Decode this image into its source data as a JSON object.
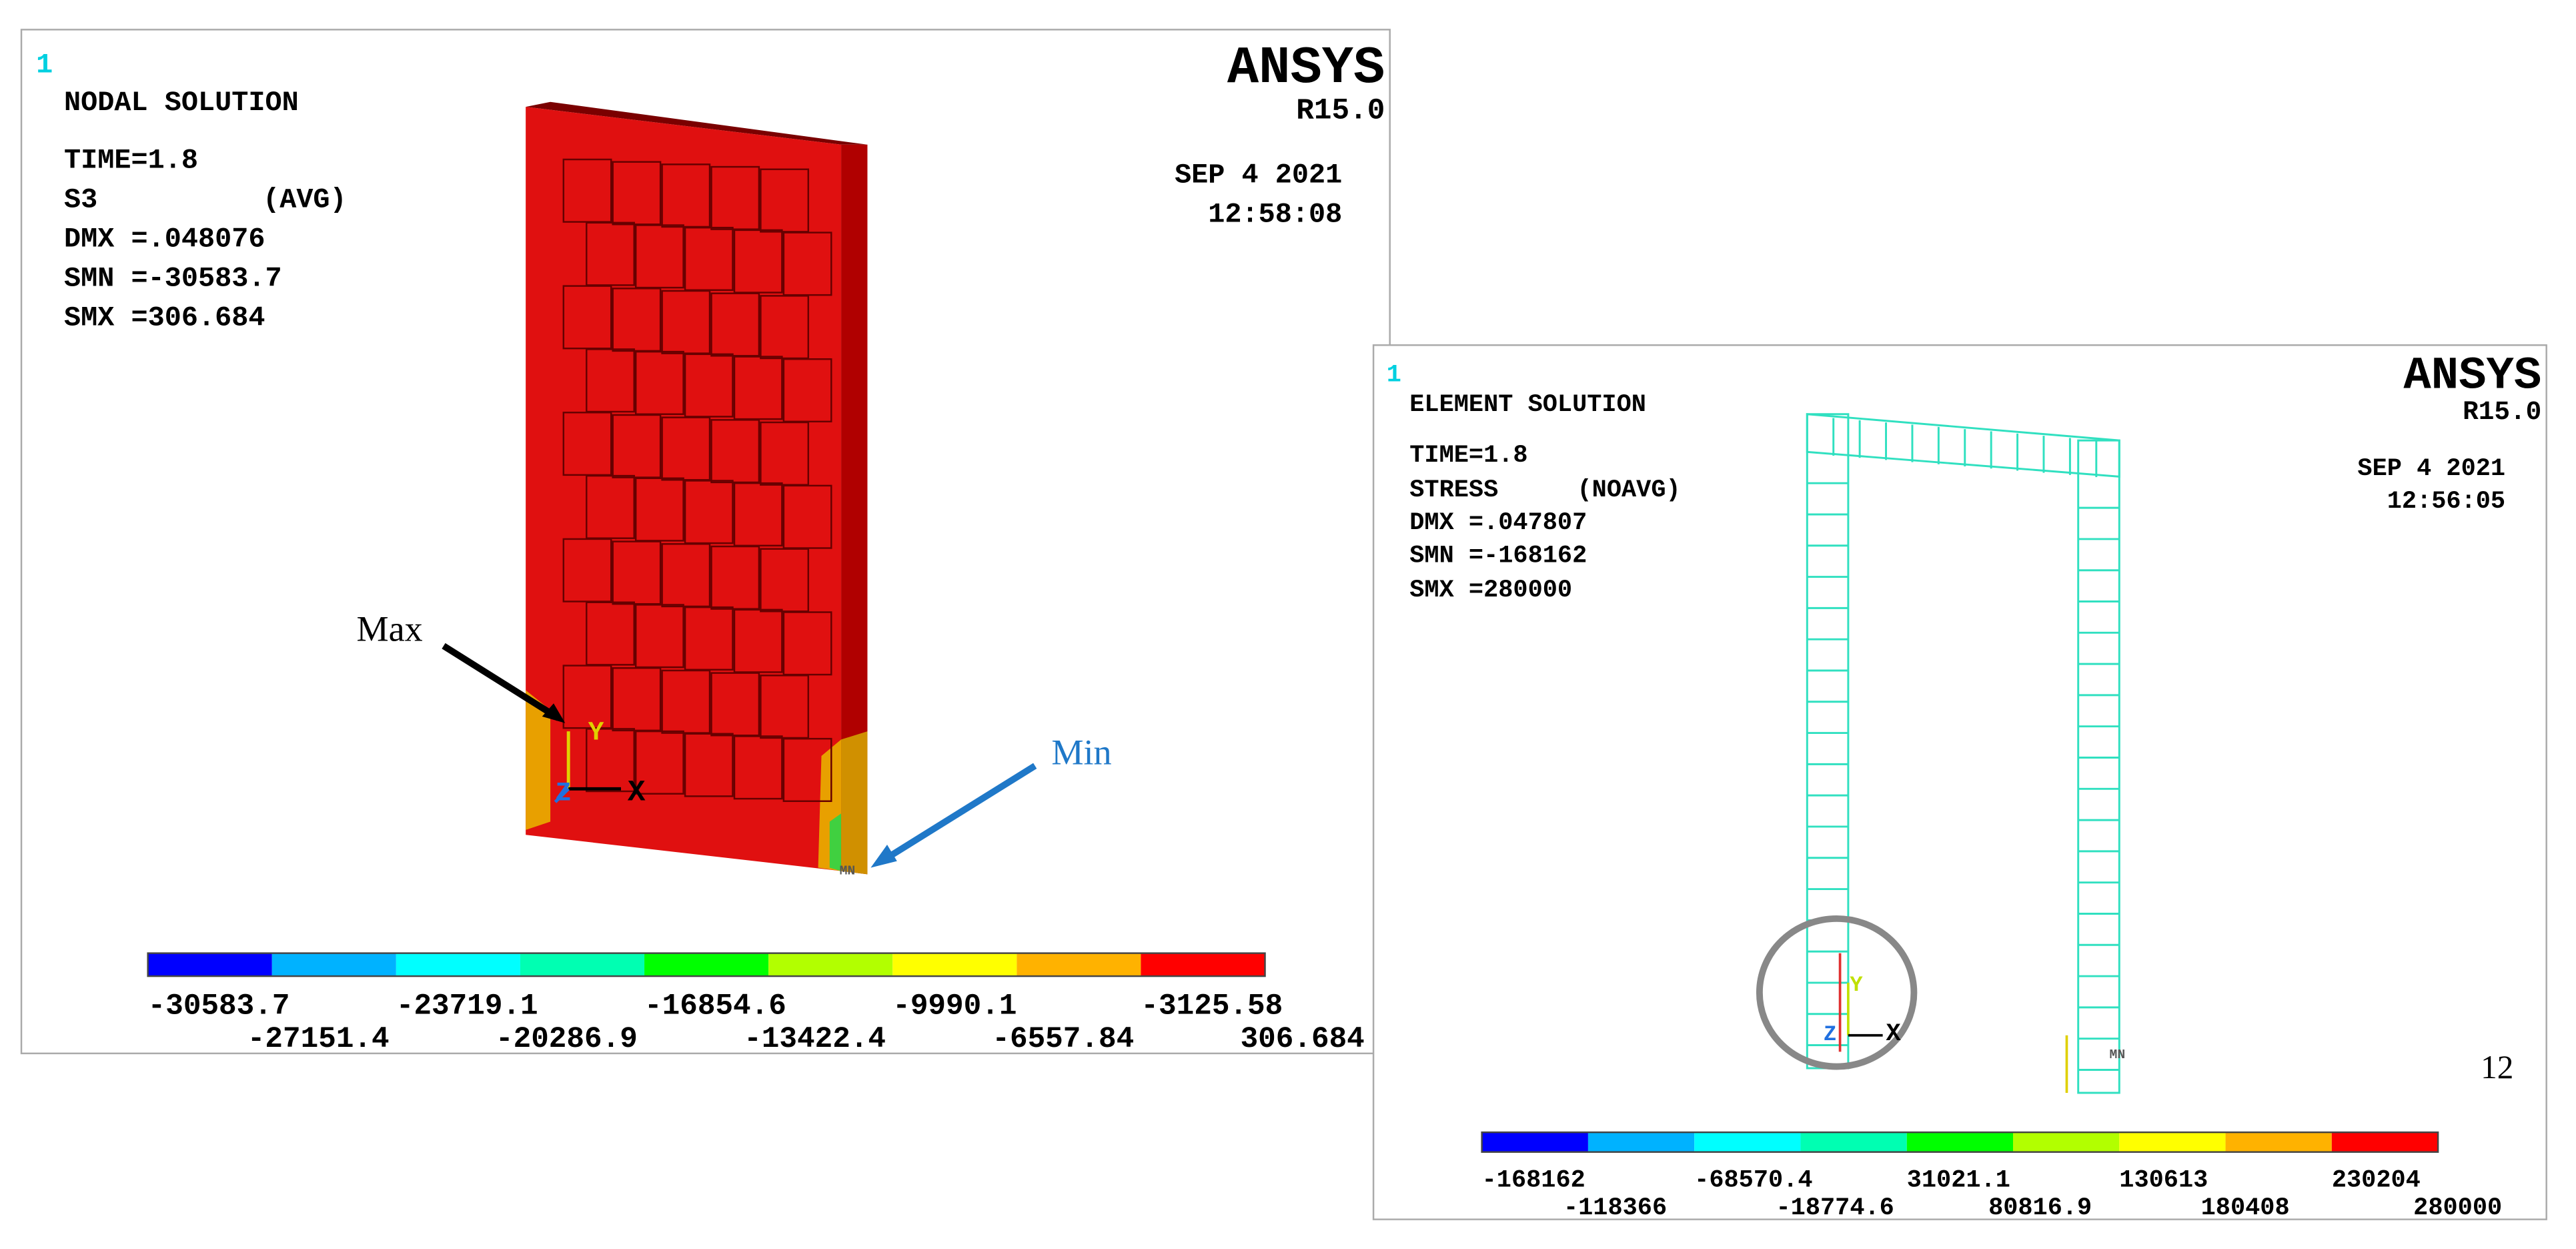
{
  "panels": [
    {
      "plot_number": "1",
      "heading": "NODAL SOLUTION",
      "time": "TIME=1.8",
      "item": "S3",
      "avg": "(AVG)",
      "dmx": "DMX =.048076",
      "smn": "SMN =-30583.7",
      "smx": "SMX =306.684",
      "logo": "ANSYS",
      "release": "R15.0",
      "date": "SEP  4 2021",
      "clock": "12:58:08",
      "legend": {
        "colors": [
          "#0000ff",
          "#00b2ff",
          "#00ffff",
          "#00ffb2",
          "#00ff00",
          "#b2ff00",
          "#ffff00",
          "#ffb200",
          "#ff0000"
        ],
        "upper_labels": [
          "-30583.7",
          "-23719.1",
          "-16854.6",
          "-9990.1",
          "-3125.58"
        ],
        "lower_labels": [
          "-27151.4",
          "-20286.9",
          "-13422.4",
          "-6557.84",
          "306.684"
        ]
      },
      "triad": [
        "Y",
        "Z",
        "X"
      ],
      "min_tag": "MN",
      "annotations": [
        "Max",
        "Min"
      ]
    },
    {
      "plot_number": "1",
      "heading": "ELEMENT SOLUTION",
      "time": "TIME=1.8",
      "item": "STRESS",
      "avg": "(NOAVG)",
      "dmx": "DMX =.047807",
      "smn": "SMN =-168162",
      "smx": "SMX =280000",
      "logo": "ANSYS",
      "release": "R15.0",
      "date": "SEP  4 2021",
      "clock": "12:56:05",
      "legend": {
        "colors": [
          "#0000ff",
          "#00b2ff",
          "#00ffff",
          "#00ffb2",
          "#00ff00",
          "#b2ff00",
          "#ffff00",
          "#ffb200",
          "#ff0000"
        ],
        "upper_labels": [
          "-168162",
          "-68570.4",
          "31021.1",
          "130613",
          "230204"
        ],
        "lower_labels": [
          "-118366",
          "-18774.6",
          "80816.9",
          "180408",
          "280000"
        ]
      },
      "triad": [
        "Y",
        "Z",
        "X"
      ],
      "min_tag": "MN"
    }
  ],
  "page_number": "12"
}
